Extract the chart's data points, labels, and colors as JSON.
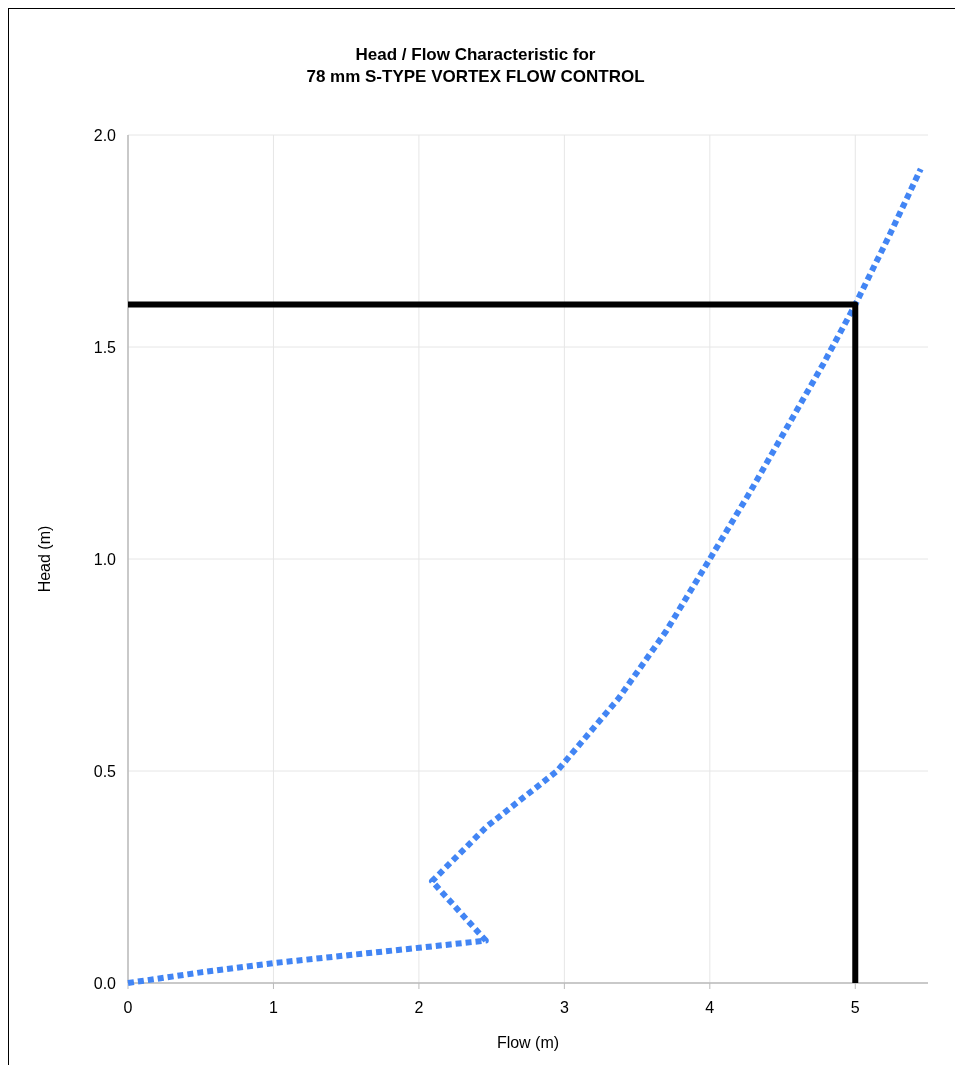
{
  "chart_data": {
    "type": "line",
    "title": "Head / Flow Characteristic for\n78 mm S-TYPE VORTEX FLOW CONTROL",
    "xlabel": "Flow (m)",
    "ylabel": "Head (m)",
    "series": [
      {
        "color": "#4285f4",
        "line_style": "dotted",
        "x": [
          0,
          0.5,
          1.0,
          1.5,
          2.0,
          2.46,
          2.09,
          2.47,
          2.95,
          3.37,
          3.7,
          4.0,
          4.28,
          4.53,
          4.78,
          5.0,
          5.23,
          5.45
        ],
        "values": [
          0,
          0.025,
          0.047,
          0.065,
          0.083,
          0.1,
          0.24,
          0.37,
          0.5,
          0.67,
          0.83,
          1.0,
          1.16,
          1.31,
          1.46,
          1.6,
          1.76,
          1.92
        ]
      },
      {
        "color": "#000000",
        "line_style": "solid",
        "x": [
          0,
          5,
          5
        ],
        "values": [
          1.6,
          1.6,
          0
        ]
      }
    ],
    "xlim": [
      0,
      5.5
    ],
    "xticks": [
      0,
      1,
      2,
      3,
      4,
      5
    ],
    "ylim": [
      0,
      2
    ],
    "yticks": [
      {
        "value": 0,
        "label": "0.0"
      },
      {
        "value": 0.5,
        "label": "0.5"
      },
      {
        "value": 1,
        "label": "1.0"
      },
      {
        "value": 1.5,
        "label": "1.5"
      },
      {
        "value": 2,
        "label": "2.0"
      }
    ],
    "grid": true,
    "marker": "none"
  }
}
